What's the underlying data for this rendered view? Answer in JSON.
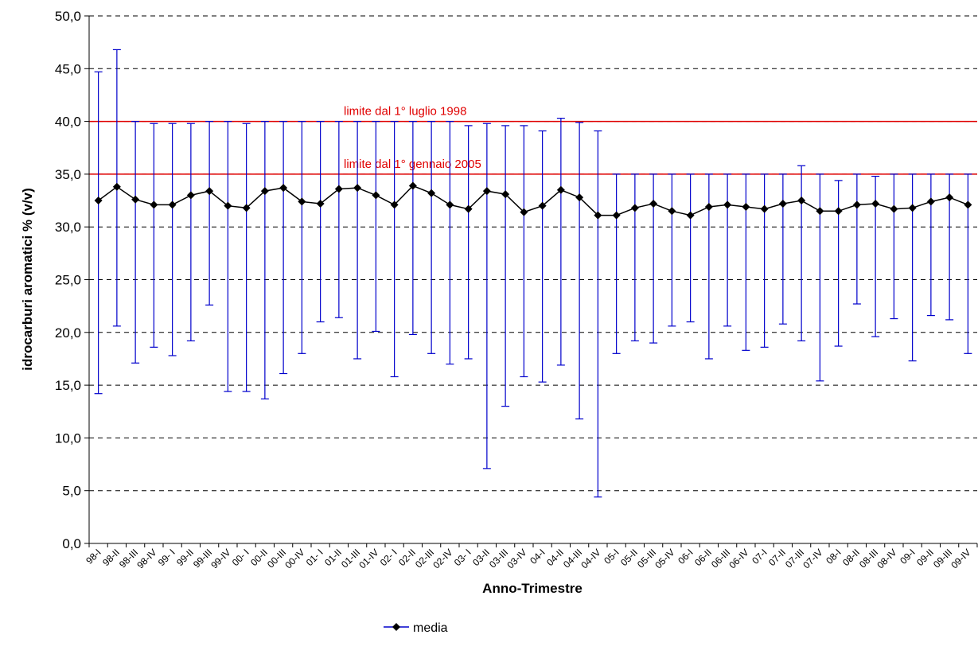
{
  "chart_data": {
    "type": "line",
    "xlabel": "Anno-Trimestre",
    "ylabel": "idrocarburi aromatici % (v/v)",
    "ylim": [
      0,
      50
    ],
    "yticks": [
      "0,0",
      "5,0",
      "10,0",
      "15,0",
      "20,0",
      "25,0",
      "30,0",
      "35,0",
      "40,0",
      "45,0",
      "50,0"
    ],
    "grid": "horizontal dashed",
    "legend_position": "bottom-center",
    "categories": [
      "98-I",
      "98-II",
      "98-III",
      "98-IV",
      "99- I",
      "99-II",
      "99-III",
      "99-IV",
      "00- I",
      "00-II",
      "00-III",
      "00-IV",
      "01- I",
      "01-II",
      "01-III",
      "01-IV",
      "02- I",
      "02-II",
      "02-III",
      "02-IV",
      "03- I",
      "03-II",
      "03-III",
      "03-IV",
      "04-I",
      "04-II",
      "04-III",
      "04-IV",
      "05-I",
      "05-II",
      "05-III",
      "05-IV",
      "06-I",
      "06-II",
      "06-III",
      "06-IV",
      "07-I",
      "07-II",
      "07-III",
      "07-IV",
      "08-I",
      "08-II",
      "08-III",
      "08-IV",
      "09-I",
      "09-II",
      "09-III",
      "09-IV"
    ],
    "series": [
      {
        "name": "media",
        "color": "#000000",
        "marker": "diamond",
        "values": [
          32.5,
          33.8,
          32.6,
          32.1,
          32.1,
          33.0,
          33.4,
          32.0,
          31.8,
          33.4,
          33.7,
          32.4,
          32.2,
          33.6,
          33.7,
          33.0,
          32.1,
          33.9,
          33.2,
          32.1,
          31.7,
          33.4,
          33.1,
          31.4,
          32.0,
          33.5,
          32.8,
          31.1,
          31.1,
          31.8,
          32.2,
          31.5,
          31.1,
          31.9,
          32.1,
          31.9,
          31.7,
          32.2,
          32.5,
          31.5,
          31.5,
          32.1,
          32.2,
          31.7,
          31.8,
          32.4,
          32.8,
          32.1
        ]
      }
    ],
    "error_bars": {
      "color": "#0000cc",
      "min": [
        14.2,
        20.6,
        17.1,
        18.6,
        17.8,
        19.2,
        22.6,
        14.4,
        14.4,
        13.7,
        16.1,
        18.0,
        21.0,
        21.4,
        17.5,
        20.1,
        15.8,
        19.8,
        18.0,
        17.0,
        17.5,
        7.1,
        13.0,
        15.8,
        15.3,
        16.9,
        11.8,
        4.4,
        18.0,
        19.2,
        19.0,
        20.6,
        21.0,
        17.5,
        20.6,
        18.3,
        18.6,
        20.8,
        19.2,
        15.4,
        18.7,
        22.7,
        19.6,
        21.3,
        17.3,
        21.6,
        21.2,
        18.0
      ],
      "max": [
        44.7,
        46.8,
        40.0,
        39.8,
        39.8,
        39.8,
        40.0,
        40.0,
        39.8,
        40.0,
        40.0,
        40.0,
        40.0,
        40.0,
        40.0,
        40.0,
        40.0,
        40.0,
        40.0,
        40.0,
        39.6,
        39.8,
        39.6,
        39.6,
        39.1,
        40.3,
        39.9,
        39.1,
        35.0,
        35.0,
        35.0,
        35.0,
        35.0,
        35.0,
        35.0,
        35.0,
        35.0,
        35.0,
        35.8,
        35.0,
        34.4,
        35.0,
        34.8,
        35.0,
        35.0,
        35.0,
        35.0,
        35.0
      ]
    },
    "reference_lines": [
      {
        "value": 40.0,
        "label": "limite dal 1° luglio 1998",
        "color": "#e00000"
      },
      {
        "value": 35.0,
        "label": "limite dal 1° gennaio 2005",
        "color": "#e00000"
      }
    ]
  }
}
